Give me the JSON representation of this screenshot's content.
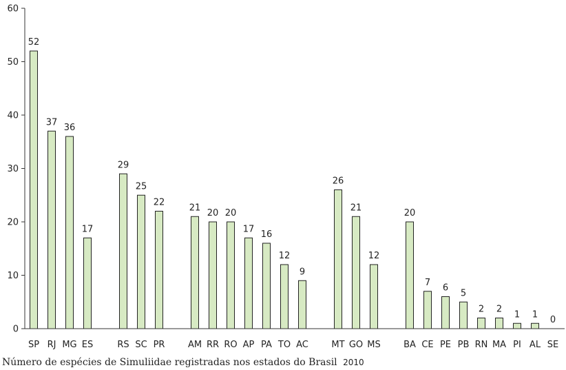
{
  "caption": {
    "text": "Número de espécies de Simuliidae registradas nos estados do Brasil",
    "year": "2010"
  },
  "chart_data": {
    "type": "bar",
    "title": "",
    "xlabel": "",
    "ylabel": "",
    "ylim": [
      0,
      60
    ],
    "yticks": [
      0,
      10,
      20,
      30,
      40,
      50,
      60
    ],
    "grid": false,
    "bar_color": "#d7eac3",
    "bar_stroke": "#222222",
    "groups": [
      {
        "categories": [
          "SP",
          "RJ",
          "MG",
          "ES"
        ],
        "values": [
          52,
          37,
          36,
          17
        ]
      },
      {
        "categories": [
          "RS",
          "SC",
          "PR"
        ],
        "values": [
          29,
          25,
          22
        ]
      },
      {
        "categories": [
          "AM",
          "RR",
          "RO",
          "AP",
          "PA",
          "TO",
          "AC"
        ],
        "values": [
          21,
          20,
          20,
          17,
          16,
          12,
          9
        ]
      },
      {
        "categories": [
          "MT",
          "GO",
          "MS"
        ],
        "values": [
          26,
          21,
          12
        ]
      },
      {
        "categories": [
          "BA",
          "CE",
          "PE",
          "PB",
          "RN",
          "MA",
          "PI",
          "AL",
          "SE"
        ],
        "values": [
          20,
          7,
          6,
          5,
          2,
          2,
          1,
          1,
          0
        ]
      }
    ]
  }
}
